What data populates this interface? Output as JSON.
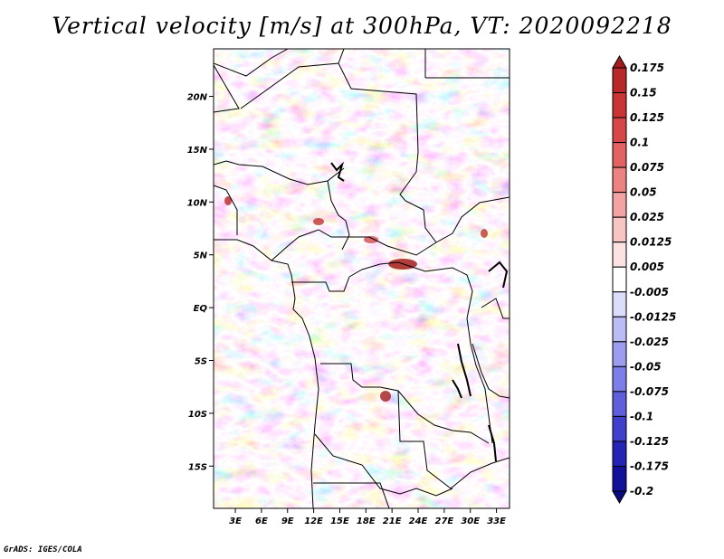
{
  "title": "Vertical velocity [m/s] at 300hPa, VT: 2020092218",
  "credit": "GrADS: IGES/COLA",
  "map": {
    "lat_range": [
      -19,
      24.5
    ],
    "lon_range": [
      0.5,
      34.5
    ],
    "lat_ticks": [
      "20N",
      "15N",
      "10N",
      "5N",
      "EQ",
      "5S",
      "10S",
      "15S"
    ],
    "lat_values": [
      20,
      15,
      10,
      5,
      0,
      -5,
      -10,
      -15
    ],
    "lon_ticks": [
      "3E",
      "6E",
      "9E",
      "12E",
      "15E",
      "18E",
      "21E",
      "24E",
      "27E",
      "30E",
      "33E"
    ],
    "lon_values": [
      3,
      6,
      9,
      12,
      15,
      18,
      21,
      24,
      27,
      30,
      33
    ]
  },
  "colorbar": {
    "labels": [
      "0.175",
      "0.15",
      "0.125",
      "0.1",
      "0.075",
      "0.05",
      "0.025",
      "0.0125",
      "0.005",
      "-0.005",
      "-0.0125",
      "-0.025",
      "-0.05",
      "-0.075",
      "-0.1",
      "-0.125",
      "-0.175",
      "-0.2"
    ],
    "colors": [
      "#a31c1c",
      "#b82828",
      "#c93535",
      "#d84747",
      "#e36262",
      "#ec8282",
      "#f3a3a3",
      "#f8c4c4",
      "#fce2e2",
      "#ffffff",
      "#dcdcfc",
      "#bcbcf5",
      "#9d9df0",
      "#7e7ee8",
      "#5f5fdc",
      "#4040cd",
      "#2525b5",
      "#111199",
      "#0a0a80"
    ]
  }
}
